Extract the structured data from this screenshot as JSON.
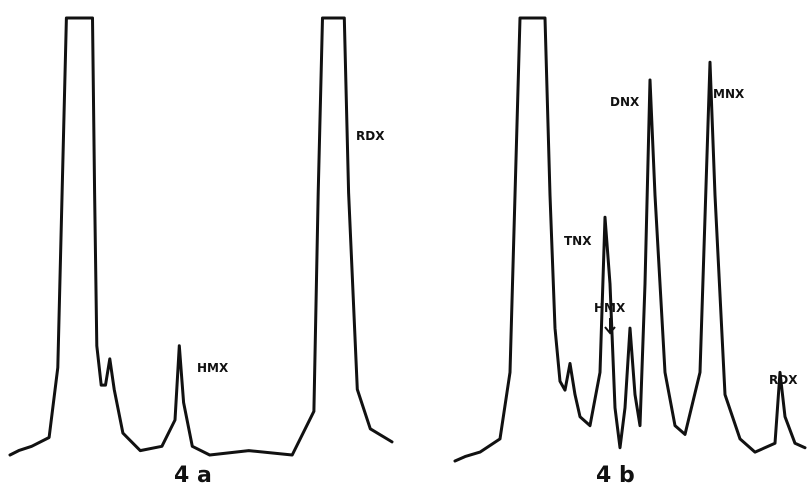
{
  "chart_data": [
    {
      "type": "line",
      "panel": "4 a",
      "title": "4 a",
      "xlabel": "",
      "ylabel": "",
      "grid": false,
      "ylim": [
        0,
        100
      ],
      "note_peaks_off_scale": true,
      "peaks": [
        {
          "label": "",
          "y": 100
        },
        {
          "label": "",
          "y": 22
        },
        {
          "label": "HMX",
          "y": 25
        },
        {
          "label": "RDX",
          "y": 100
        }
      ],
      "series": [
        {
          "points": [
            [
              0,
              0
            ],
            [
              2,
              1
            ],
            [
              5,
              2
            ],
            [
              9,
              4
            ],
            [
              11,
              20
            ],
            [
              12,
              60
            ],
            [
              13,
              100
            ],
            [
              19,
              100
            ],
            [
              19.5,
              60
            ],
            [
              20,
              25
            ],
            [
              21,
              16
            ],
            [
              22,
              16
            ],
            [
              23,
              22
            ],
            [
              24,
              15
            ],
            [
              26,
              5
            ],
            [
              30,
              1
            ],
            [
              35,
              2
            ],
            [
              38,
              8
            ],
            [
              39,
              25
            ],
            [
              40,
              12
            ],
            [
              42,
              2
            ],
            [
              46,
              0
            ],
            [
              55,
              1
            ],
            [
              65,
              0
            ],
            [
              70,
              10
            ],
            [
              71,
              60
            ],
            [
              72,
              100
            ],
            [
              77,
              100
            ],
            [
              78,
              60
            ],
            [
              80,
              15
            ],
            [
              83,
              6
            ],
            [
              88,
              3
            ]
          ]
        }
      ]
    },
    {
      "type": "line",
      "panel": "4 b",
      "title": "4 b",
      "xlabel": "",
      "ylabel": "",
      "grid": false,
      "ylim": [
        0,
        100
      ],
      "note_peaks_off_scale": true,
      "peaks": [
        {
          "label": "",
          "y": 100
        },
        {
          "label": "",
          "y": 22
        },
        {
          "label": "TNX",
          "y": 55
        },
        {
          "label": "HMX",
          "y": 30,
          "arrow": true
        },
        {
          "label": "DNX",
          "y": 86
        },
        {
          "label": "MNX",
          "y": 90
        },
        {
          "label": "RDX",
          "y": 20
        }
      ],
      "series": [
        {
          "points": [
            [
              0,
              0
            ],
            [
              2,
              1
            ],
            [
              5,
              2
            ],
            [
              9,
              5
            ],
            [
              11,
              20
            ],
            [
              12,
              60
            ],
            [
              13,
              100
            ],
            [
              18,
              100
            ],
            [
              19,
              60
            ],
            [
              20,
              30
            ],
            [
              21,
              18
            ],
            [
              22,
              16
            ],
            [
              23,
              22
            ],
            [
              24,
              15
            ],
            [
              25,
              10
            ],
            [
              27,
              8
            ],
            [
              29,
              20
            ],
            [
              30,
              55
            ],
            [
              31,
              40
            ],
            [
              32,
              12
            ],
            [
              33,
              3
            ],
            [
              34,
              12
            ],
            [
              35,
              30
            ],
            [
              36,
              15
            ],
            [
              37,
              8
            ],
            [
              38,
              40
            ],
            [
              39,
              86
            ],
            [
              40,
              60
            ],
            [
              42,
              20
            ],
            [
              44,
              8
            ],
            [
              46,
              6
            ],
            [
              49,
              20
            ],
            [
              51,
              90
            ],
            [
              52,
              60
            ],
            [
              54,
              15
            ],
            [
              57,
              5
            ],
            [
              60,
              2
            ],
            [
              64,
              4
            ],
            [
              65,
              20
            ],
            [
              66,
              10
            ],
            [
              68,
              4
            ],
            [
              70,
              3
            ]
          ]
        }
      ]
    }
  ]
}
